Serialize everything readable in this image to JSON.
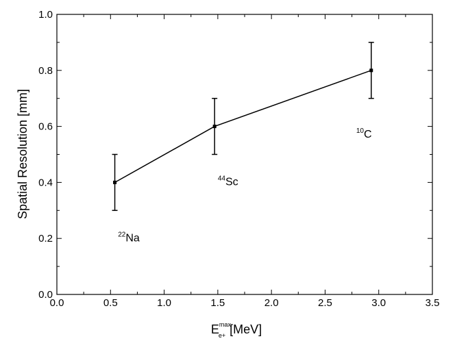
{
  "chart_data": {
    "type": "line",
    "title": "",
    "ylabel": "Spatial Resolution [mm]",
    "xlabel": {
      "base": "E",
      "superscript": "max",
      "subscript": "e+",
      "unit": "[MeV]"
    },
    "xlim": [
      0.0,
      3.5
    ],
    "ylim": [
      0.0,
      1.0
    ],
    "x_ticks": [
      "0.0",
      "0.5",
      "1.0",
      "1.5",
      "2.0",
      "2.5",
      "3.0",
      "3.5"
    ],
    "y_ticks": [
      "0.0",
      "0.2",
      "0.4",
      "0.6",
      "0.8",
      "1.0"
    ],
    "grid": false,
    "series": [
      {
        "points": [
          {
            "x": 0.54,
            "y": 0.4,
            "err": 0.1
          },
          {
            "x": 1.47,
            "y": 0.6,
            "err": 0.1
          },
          {
            "x": 2.93,
            "y": 0.8,
            "err": 0.1
          }
        ]
      }
    ],
    "annotations": [
      {
        "mass": "22",
        "element": "Na",
        "x": 0.57,
        "y": 0.19
      },
      {
        "mass": "44",
        "element": "Sc",
        "x": 1.5,
        "y": 0.39
      },
      {
        "mass": "10",
        "element": "C",
        "x": 2.79,
        "y": 0.56
      }
    ]
  }
}
